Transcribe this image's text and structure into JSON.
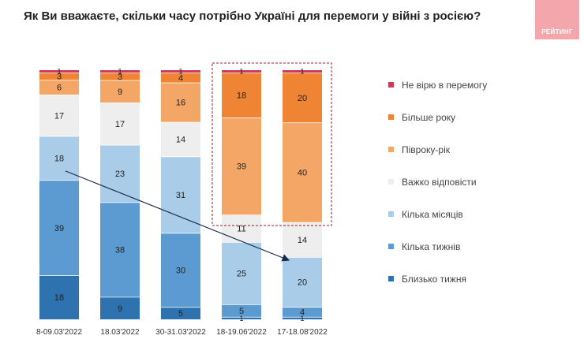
{
  "logo_text": "РЕЙТИНГ",
  "chart_data": {
    "type": "bar",
    "stacked": true,
    "title": "Як Ви вважаєте, скільки часу потрібно Україні для перемоги у війні з росією?",
    "categories": [
      "8-09.03'2022",
      "18.03'2022",
      "30-31.03'2022",
      "18-19.06'2022",
      "17-18.08'2022"
    ],
    "ylim": [
      0,
      100
    ],
    "series": [
      {
        "name": "Близько тижня",
        "color": "#2e72b0",
        "values": [
          18,
          9,
          5,
          1,
          1
        ],
        "labels": [
          "18",
          "9",
          "5",
          "1",
          "1"
        ]
      },
      {
        "name": "Кілька тижнів",
        "color": "#5b9bd1",
        "values": [
          39,
          38,
          30,
          5,
          4
        ],
        "labels": [
          "39",
          "38",
          "30",
          "5",
          "4"
        ]
      },
      {
        "name": "Кілька місяців",
        "color": "#a9cde9",
        "values": [
          18,
          23,
          31,
          25,
          20
        ],
        "labels": [
          "18",
          "23",
          "31",
          "25",
          "20"
        ]
      },
      {
        "name": "Важко відповісти",
        "color": "#eeeeee",
        "values": [
          17,
          17,
          14,
          11,
          14
        ],
        "labels": [
          "17",
          "17",
          "14",
          "11",
          "14"
        ]
      },
      {
        "name": "Півроку-рік",
        "color": "#f4a666",
        "values": [
          6,
          9,
          16,
          39,
          40
        ],
        "labels": [
          "6",
          "9",
          "16",
          "39",
          "40"
        ]
      },
      {
        "name": "Більше року",
        "color": "#ee8434",
        "values": [
          3,
          3,
          4,
          18,
          20
        ],
        "labels": [
          "3",
          "3",
          "4",
          "18",
          "20"
        ]
      },
      {
        "name": "Не вірю в перемогу",
        "color": "#cc3b5a",
        "values": [
          1,
          1,
          1,
          1,
          1
        ],
        "labels": [
          "1",
          "1",
          "1",
          "1",
          "1"
        ]
      }
    ],
    "legend_order": [
      "Не вірю в перемогу",
      "Більше року",
      "Півроку-рік",
      "Важко відповісти",
      "Кілька місяців",
      "Кілька тижнів",
      "Близько тижня"
    ]
  }
}
